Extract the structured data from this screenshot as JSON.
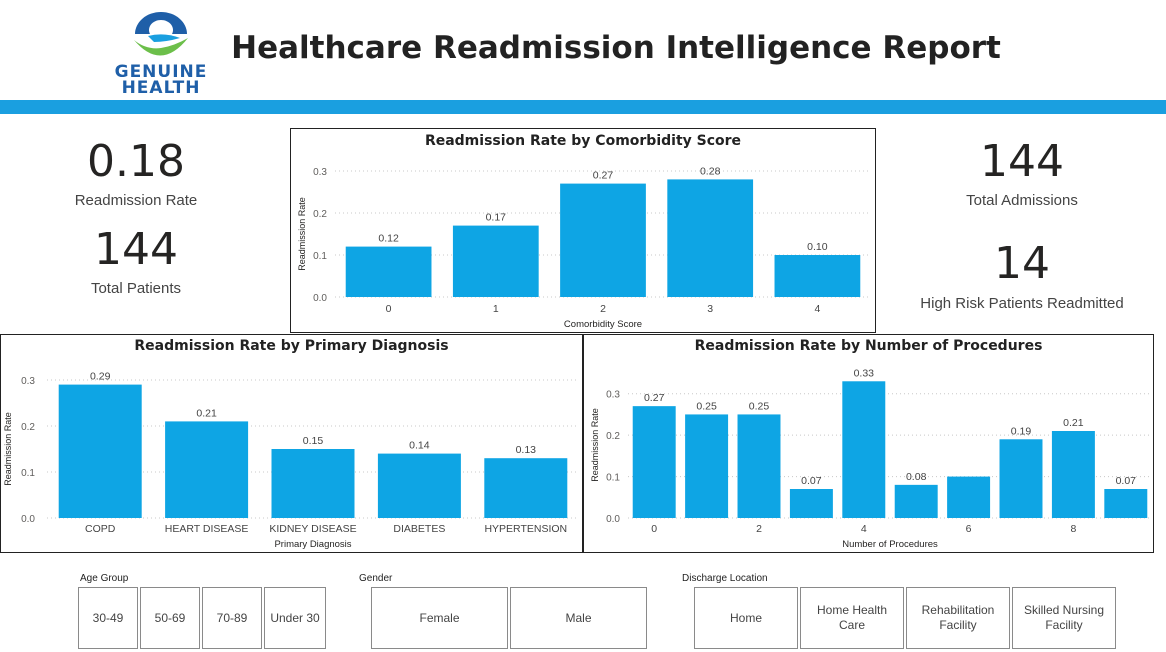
{
  "header": {
    "logo_line1": "GENUINE",
    "logo_line2": "HEALTH",
    "title": "Healthcare Readmission Intelligence Report",
    "colors": {
      "band": "#1a9fe0",
      "bar": "#0ea5e4",
      "logo_blue": "#1f5fa8",
      "logo_green": "#6cbf4a"
    }
  },
  "kpis": {
    "readmission_rate": {
      "value": "0.18",
      "label": "Readmission Rate"
    },
    "total_patients": {
      "value": "144",
      "label": "Total Patients"
    },
    "total_admissions": {
      "value": "144",
      "label": "Total Admissions"
    },
    "high_risk": {
      "value": "14",
      "label": "High Risk Patients Readmitted"
    }
  },
  "chart_data": [
    {
      "id": "comorbidity",
      "type": "bar",
      "title": "Readmission Rate by Comorbidity Score",
      "xlabel": "Comorbidity Score",
      "ylabel": "Readmission Rate",
      "categories": [
        "0",
        "1",
        "2",
        "3",
        "4"
      ],
      "values": [
        0.12,
        0.17,
        0.27,
        0.28,
        0.1
      ],
      "data_labels": [
        "0.12",
        "0.17",
        "0.27",
        "0.28",
        "0.10"
      ],
      "ylim": [
        0,
        0.3
      ],
      "yticks": [
        0,
        0.1,
        0.2,
        0.3
      ],
      "ytick_labels": [
        "0.0",
        "0.1",
        "0.2",
        "0.3"
      ],
      "grid": true
    },
    {
      "id": "diagnosis",
      "type": "bar",
      "title": "Readmission Rate by Primary Diagnosis",
      "xlabel": "Primary Diagnosis",
      "ylabel": "Readmission Rate",
      "categories": [
        "COPD",
        "HEART DISEASE",
        "KIDNEY DISEASE",
        "DIABETES",
        "HYPERTENSION"
      ],
      "values": [
        0.29,
        0.21,
        0.15,
        0.14,
        0.13
      ],
      "data_labels": [
        "0.29",
        "0.21",
        "0.15",
        "0.14",
        "0.13"
      ],
      "ylim": [
        0,
        0.3
      ],
      "yticks": [
        0,
        0.1,
        0.2,
        0.3
      ],
      "ytick_labels": [
        "0.0",
        "0.1",
        "0.2",
        "0.3"
      ],
      "grid": true
    },
    {
      "id": "procedures",
      "type": "bar",
      "title": "Readmission Rate by Number of Procedures",
      "xlabel": "Number of Procedures",
      "ylabel": "Readmission Rate",
      "categories": [
        "0",
        "1",
        "2",
        "3",
        "4",
        "5",
        "6",
        "7",
        "8",
        "9"
      ],
      "visible_xtick_labels": [
        "0",
        "",
        "2",
        "",
        "4",
        "",
        "6",
        "",
        "8",
        ""
      ],
      "values": [
        0.27,
        0.25,
        0.25,
        0.07,
        0.33,
        0.08,
        0.1,
        0.19,
        0.21,
        0.07
      ],
      "data_labels": [
        "0.27",
        "0.25",
        "0.25",
        "0.07",
        "0.33",
        "0.08",
        "",
        "0.19",
        "0.21",
        "0.07"
      ],
      "ylim": [
        0,
        0.35
      ],
      "yticks": [
        0,
        0.1,
        0.2,
        0.3
      ],
      "ytick_labels": [
        "0.0",
        "0.1",
        "0.2",
        "0.3"
      ],
      "grid": true
    }
  ],
  "slicers": {
    "age_group": {
      "title": "Age Group",
      "options": [
        "30-49",
        "50-69",
        "70-89",
        "Under 30"
      ]
    },
    "gender": {
      "title": "Gender",
      "options": [
        "Female",
        "Male"
      ]
    },
    "discharge": {
      "title": "Discharge Location",
      "options": [
        "Home",
        "Home Health Care",
        "Rehabilitation Facility",
        "Skilled Nursing Facility"
      ]
    }
  }
}
